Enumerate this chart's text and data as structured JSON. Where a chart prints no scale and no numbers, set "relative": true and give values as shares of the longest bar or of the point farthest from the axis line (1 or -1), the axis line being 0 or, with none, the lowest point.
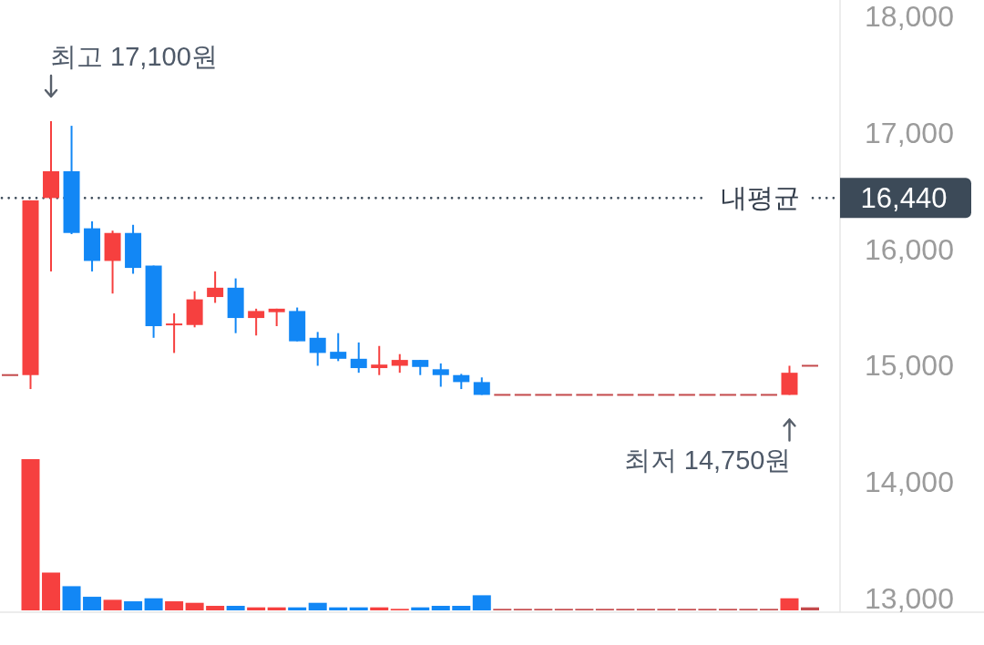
{
  "chart_data": [
    {
      "type": "candlestick",
      "categories": [
        null,
        null,
        null,
        null,
        null,
        null,
        null,
        null,
        null,
        null,
        null,
        null,
        null,
        null,
        null,
        null,
        null,
        null,
        null,
        null,
        null,
        null,
        null,
        null,
        null,
        null,
        null,
        null,
        null,
        null,
        null,
        null,
        null,
        null,
        null,
        null,
        null,
        null,
        null,
        null
      ],
      "ohlc": [
        [
          14920,
          14920,
          14920,
          14920
        ],
        [
          14920,
          16420,
          14800,
          16420
        ],
        [
          16440,
          17100,
          15810,
          16670
        ],
        [
          16670,
          17060,
          16130,
          16140
        ],
        [
          16180,
          16240,
          15810,
          15900
        ],
        [
          15900,
          16160,
          15620,
          16140
        ],
        [
          16140,
          16210,
          15790,
          15840
        ],
        [
          15860,
          15860,
          15240,
          15340
        ],
        [
          15350,
          15450,
          15110,
          15360
        ],
        [
          15350,
          15640,
          15330,
          15570
        ],
        [
          15590,
          15810,
          15540,
          15670
        ],
        [
          15670,
          15750,
          15280,
          15410
        ],
        [
          15410,
          15490,
          15260,
          15470
        ],
        [
          15460,
          15490,
          15340,
          15490
        ],
        [
          15470,
          15500,
          15210,
          15210
        ],
        [
          15240,
          15290,
          15000,
          15110
        ],
        [
          15120,
          15280,
          15040,
          15060
        ],
        [
          15060,
          15200,
          14940,
          14980
        ],
        [
          14980,
          15170,
          14920,
          15010
        ],
        [
          15000,
          15100,
          14940,
          15050
        ],
        [
          15050,
          15050,
          14920,
          14990
        ],
        [
          14970,
          15020,
          14820,
          14920
        ],
        [
          14920,
          14930,
          14800,
          14860
        ],
        [
          14860,
          14900,
          14750,
          14750
        ],
        [
          14750,
          14750,
          14750,
          14750
        ],
        [
          14750,
          14750,
          14750,
          14750
        ],
        [
          14750,
          14750,
          14750,
          14750
        ],
        [
          14750,
          14750,
          14750,
          14750
        ],
        [
          14750,
          14750,
          14750,
          14750
        ],
        [
          14750,
          14750,
          14750,
          14750
        ],
        [
          14750,
          14750,
          14750,
          14750
        ],
        [
          14750,
          14750,
          14750,
          14750
        ],
        [
          14750,
          14750,
          14750,
          14750
        ],
        [
          14750,
          14750,
          14750,
          14750
        ],
        [
          14750,
          14750,
          14750,
          14750
        ],
        [
          14750,
          14750,
          14750,
          14750
        ],
        [
          14750,
          14750,
          14750,
          14750
        ],
        [
          14750,
          14750,
          14750,
          14750
        ],
        [
          14750,
          15000,
          14750,
          14940
        ],
        [
          15000,
          15000,
          15000,
          15000
        ]
      ],
      "colors": [
        "#c44a4c",
        "#f6403f",
        "#f6403f",
        "#1287f5",
        "#1287f5",
        "#f6403f",
        "#1287f5",
        "#1287f5",
        "#f6403f",
        "#f6403f",
        "#f6403f",
        "#1287f5",
        "#f6403f",
        "#f6403f",
        "#1287f5",
        "#1287f5",
        "#1287f5",
        "#1287f5",
        "#f6403f",
        "#f6403f",
        "#1287f5",
        "#1287f5",
        "#1287f5",
        "#1287f5",
        "#c44a4c",
        "#c44a4c",
        "#c44a4c",
        "#c44a4c",
        "#c44a4c",
        "#c44a4c",
        "#c44a4c",
        "#c44a4c",
        "#c44a4c",
        "#c44a4c",
        "#c44a4c",
        "#c44a4c",
        "#c44a4c",
        "#c44a4c",
        "#f6403f",
        "#c44a4c"
      ],
      "ylim": [
        12900,
        18140
      ],
      "yticks": [
        {
          "value": 13000,
          "label": "13,000"
        },
        {
          "value": 14000,
          "label": "14,000"
        },
        {
          "value": 15000,
          "label": "15,000"
        },
        {
          "value": 16000,
          "label": "16,000"
        },
        {
          "value": 17000,
          "label": "17,000"
        },
        {
          "value": 18000,
          "label": "18,000"
        }
      ],
      "ref_lines": [
        {
          "axis": "y",
          "value": 16440,
          "label": "내평균",
          "color": "#3c4a58",
          "line_style": "dotted"
        }
      ],
      "annotations": [
        "최고 17,100원",
        "16,440",
        {
          "text": "최저 14,750원",
          "y": 14750
        }
      ]
    },
    {
      "type": "bar",
      "relative": true,
      "categories": [
        null,
        null,
        null,
        null,
        null,
        null,
        null,
        null,
        null,
        null,
        null,
        null,
        null,
        null,
        null,
        null,
        null,
        null,
        null,
        null,
        null,
        null,
        null,
        null,
        null,
        null,
        null,
        null,
        null,
        null,
        null,
        null,
        null,
        null,
        null,
        null,
        null,
        null,
        null,
        null
      ],
      "values": [
        null,
        1,
        0.25,
        0.16,
        0.09,
        0.07,
        0.06,
        0.08,
        0.06,
        0.05,
        0.03,
        0.03,
        0.02,
        0.02,
        0.02,
        0.05,
        0.02,
        0.02,
        0.02,
        0.01,
        0.02,
        0.03,
        0.03,
        0.1,
        0.01,
        0.01,
        0.01,
        0.01,
        0.01,
        0.01,
        0.01,
        0.01,
        0.01,
        0.01,
        0.01,
        0.01,
        0.01,
        0.01,
        0.08,
        0.02
      ],
      "colors": [
        null,
        "#f6403f",
        "#f6403f",
        "#1287f5",
        "#1287f5",
        "#f6403f",
        "#1287f5",
        "#1287f5",
        "#f6403f",
        "#f6403f",
        "#f6403f",
        "#1287f5",
        "#f6403f",
        "#f6403f",
        "#1287f5",
        "#1287f5",
        "#1287f5",
        "#1287f5",
        "#f6403f",
        "#f6403f",
        "#1287f5",
        "#1287f5",
        "#1287f5",
        "#1287f5",
        "#c44a4c",
        "#c44a4c",
        "#c44a4c",
        "#c44a4c",
        "#c44a4c",
        "#c44a4c",
        "#c44a4c",
        "#c44a4c",
        "#c44a4c",
        "#c44a4c",
        "#c44a4c",
        "#c44a4c",
        "#c44a4c",
        "#c44a4c",
        "#f6403f",
        "#c44a4c"
      ]
    }
  ]
}
